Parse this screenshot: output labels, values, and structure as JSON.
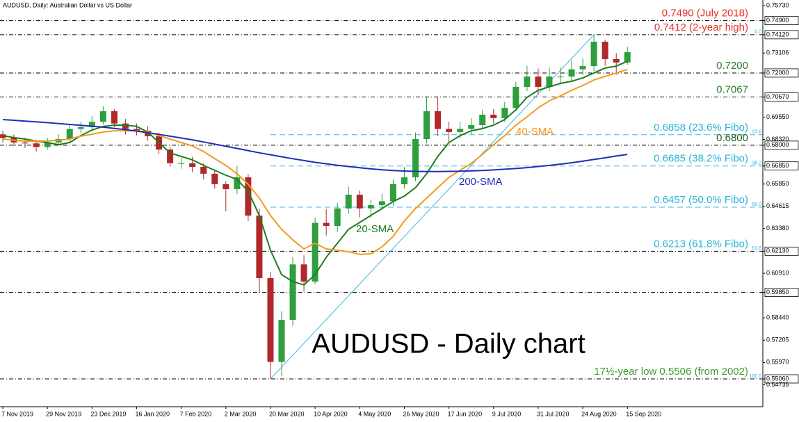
{
  "chart_data": {
    "type": "candlestick",
    "header": "AUDUSD, Daily:  Australian Dollar vs US Dollar",
    "title": "AUDUSD - Daily chart",
    "categories": [
      "7 Nov 2019",
      null,
      null,
      null,
      "29 Nov 2019",
      null,
      null,
      null,
      "23 Dec 2019",
      null,
      null,
      null,
      "16 Jan 2020",
      null,
      null,
      null,
      "7 Feb 2020",
      null,
      null,
      null,
      "2 Mar 2020",
      null,
      null,
      null,
      "20 Mar 2020",
      null,
      null,
      null,
      "10 Apr 2020",
      null,
      null,
      null,
      "4 May 2020",
      null,
      null,
      null,
      "26 May 2020",
      null,
      null,
      null,
      "17 Jun 2020",
      null,
      null,
      null,
      "9 Jul 2020",
      null,
      null,
      null,
      "31 Jul 2020",
      null,
      null,
      null,
      "24 Aug 2020",
      null,
      null,
      null,
      "15 Sep 2020"
    ],
    "open": [
      0.686,
      0.684,
      0.6815,
      0.681,
      0.679,
      0.6815,
      0.6834,
      0.689,
      0.69,
      0.693,
      0.6988,
      0.692,
      0.689,
      0.688,
      0.685,
      0.6776,
      0.67,
      0.67,
      0.668,
      0.6642,
      0.6584,
      0.6557,
      0.6622,
      0.641,
      0.6064,
      0.56,
      0.5833,
      0.614,
      0.6045,
      0.637,
      0.6353,
      0.645,
      0.6526,
      0.645,
      0.6468,
      0.649,
      0.6584,
      0.6622,
      0.6834,
      0.6988,
      0.689,
      0.6873,
      0.689,
      0.6911,
      0.6969,
      0.695,
      0.7007,
      0.7123,
      0.718,
      0.7123,
      0.718,
      0.718,
      0.722,
      0.7238,
      0.7373,
      0.7277,
      0.7258
    ],
    "high": [
      0.688,
      0.686,
      0.684,
      0.683,
      0.684,
      0.686,
      0.6915,
      0.693,
      0.696,
      0.7016,
      0.7,
      0.6945,
      0.692,
      0.6905,
      0.687,
      0.679,
      0.673,
      0.6735,
      0.67,
      0.6665,
      0.66,
      0.6685,
      0.664,
      0.645,
      0.61,
      0.588,
      0.618,
      0.619,
      0.64,
      0.6445,
      0.648,
      0.657,
      0.655,
      0.65,
      0.653,
      0.661,
      0.668,
      0.687,
      0.7065,
      0.7067,
      0.693,
      0.693,
      0.695,
      0.6995,
      0.7,
      0.704,
      0.715,
      0.724,
      0.7225,
      0.723,
      0.723,
      0.727,
      0.728,
      0.7412,
      0.7385,
      0.731,
      0.7345
    ],
    "low": [
      0.6815,
      0.6795,
      0.6785,
      0.6765,
      0.6775,
      0.68,
      0.682,
      0.6865,
      0.688,
      0.6915,
      0.69,
      0.686,
      0.6855,
      0.6825,
      0.675,
      0.668,
      0.667,
      0.665,
      0.661,
      0.656,
      0.6435,
      0.653,
      0.638,
      0.598,
      0.5506,
      0.552,
      0.58,
      0.599,
      0.603,
      0.63,
      0.632,
      0.642,
      0.64,
      0.64,
      0.645,
      0.6465,
      0.656,
      0.66,
      0.681,
      0.685,
      0.682,
      0.6835,
      0.686,
      0.689,
      0.692,
      0.693,
      0.699,
      0.71,
      0.708,
      0.71,
      0.714,
      0.715,
      0.719,
      0.721,
      0.724,
      0.719,
      0.7245
    ],
    "close": [
      0.684,
      0.6815,
      0.681,
      0.679,
      0.6815,
      0.6834,
      0.689,
      0.69,
      0.693,
      0.6988,
      0.692,
      0.689,
      0.688,
      0.685,
      0.6776,
      0.67,
      0.67,
      0.668,
      0.6642,
      0.6584,
      0.6557,
      0.6622,
      0.641,
      0.6064,
      0.56,
      0.5833,
      0.614,
      0.6045,
      0.637,
      0.6353,
      0.645,
      0.6526,
      0.645,
      0.6468,
      0.649,
      0.6584,
      0.6622,
      0.6834,
      0.6988,
      0.689,
      0.6873,
      0.689,
      0.6911,
      0.6969,
      0.695,
      0.7007,
      0.7123,
      0.718,
      0.7123,
      0.718,
      0.718,
      0.722,
      0.7238,
      0.7373,
      0.7277,
      0.7258,
      0.7315
    ],
    "up_color": "#2e9e3e",
    "down_color": "#b0282a",
    "series": [
      {
        "name": "20-SMA",
        "color": "#1e7d1e",
        "values": [
          0.6853,
          0.6842,
          0.6834,
          0.6823,
          0.6815,
          0.6803,
          0.6815,
          0.6853,
          0.6884,
          0.6904,
          0.6911,
          0.6911,
          0.6904,
          0.6873,
          0.6815,
          0.6757,
          0.6738,
          0.6719,
          0.6688,
          0.6661,
          0.6634,
          0.6611,
          0.6545,
          0.6411,
          0.6218,
          0.6083,
          0.6045,
          0.6026,
          0.6083,
          0.618,
          0.6257,
          0.6334,
          0.6372,
          0.6411,
          0.6449,
          0.6488,
          0.6518,
          0.6565,
          0.6642,
          0.6738,
          0.6815,
          0.6853,
          0.688,
          0.6892,
          0.6911,
          0.6942,
          0.6996,
          0.7065,
          0.7104,
          0.7123,
          0.7142,
          0.7154,
          0.7173,
          0.72,
          0.7227,
          0.7238,
          0.7265
        ]
      },
      {
        "name": "40-SMA",
        "color": "#f39a1e",
        "values": [
          0.6834,
          0.6827,
          0.6823,
          0.6823,
          0.6823,
          0.6827,
          0.6834,
          0.685,
          0.6861,
          0.6873,
          0.688,
          0.688,
          0.688,
          0.6873,
          0.6853,
          0.6834,
          0.6815,
          0.6796,
          0.6765,
          0.6726,
          0.6688,
          0.6642,
          0.6584,
          0.6507,
          0.6411,
          0.6334,
          0.6276,
          0.6226,
          0.6257,
          0.6226,
          0.6218,
          0.621,
          0.6195,
          0.6199,
          0.6237,
          0.6295,
          0.638,
          0.6449,
          0.6507,
          0.6565,
          0.6622,
          0.6661,
          0.6699,
          0.6749,
          0.6803,
          0.6853,
          0.6911,
          0.6957,
          0.7007,
          0.7046,
          0.7073,
          0.7104,
          0.7131,
          0.7161,
          0.7181,
          0.72,
          0.7219
        ]
      },
      {
        "name": "200-SMA",
        "color": "#1f2db5",
        "values": [
          0.6942,
          0.6938,
          0.6933,
          0.6929,
          0.6925,
          0.692,
          0.6915,
          0.691,
          0.6905,
          0.69,
          0.6893,
          0.6886,
          0.6878,
          0.687,
          0.686,
          0.685,
          0.684,
          0.683,
          0.6818,
          0.6806,
          0.6794,
          0.6782,
          0.677,
          0.6758,
          0.6747,
          0.6736,
          0.6725,
          0.6715,
          0.6705,
          0.6697,
          0.6689,
          0.6682,
          0.6675,
          0.6669,
          0.6664,
          0.666,
          0.6657,
          0.6655,
          0.6654,
          0.6654,
          0.6655,
          0.6656,
          0.6658,
          0.666,
          0.6663,
          0.6667,
          0.6671,
          0.6676,
          0.6682,
          0.6688,
          0.6695,
          0.6703,
          0.6712,
          0.6721,
          0.673,
          0.674,
          0.6749
        ]
      }
    ],
    "trendline_color": "#3fb7e6",
    "levels": [
      {
        "value": 0.749,
        "label": "0.7490 (July 2018)",
        "color": "#e8302a",
        "line_color": "#000000"
      },
      {
        "value": 0.7412,
        "label": "0.7412 (2-year high)",
        "color": "#e8302a",
        "line_color": "#000000",
        "fibo": "0.0"
      },
      {
        "value": 0.72,
        "label": "0.7200",
        "color": "#2a7d2a",
        "line_color": "#000000"
      },
      {
        "value": 0.7067,
        "label": "0.7067",
        "color": "#2a7d2a",
        "line_color": "#000000"
      },
      {
        "value": 0.6858,
        "label": "0.6858 (23.6% Fibo)",
        "color": "#2ab3d8",
        "line_color": "#3fb7e6",
        "fibo": "23.6"
      },
      {
        "value": 0.68,
        "label": "0.6800",
        "color": "#1f5e1f",
        "line_color": "#000000"
      },
      {
        "value": 0.6685,
        "label": "0.6685 (38.2% Fibo)",
        "color": "#2ab3d8",
        "line_color": "#3fb7e6",
        "fibo": "38.2"
      },
      {
        "value": 0.6457,
        "label": "0.6457 (50.0% Fibo)",
        "color": "#2ab3d8",
        "line_color": "#3fb7e6",
        "fibo": "50.0"
      },
      {
        "value": 0.6213,
        "label": "0.6213 (61.8% Fibo)",
        "color": "#2ab3d8",
        "line_color": "#000000",
        "fibo": "61.8"
      },
      {
        "value": 0.5985,
        "line_color": "#000000"
      },
      {
        "value": 0.5506,
        "label": "17½-year low 0.5506 (from 2002)",
        "color": "#3a9a2a",
        "line_color": "#000000",
        "fibo": "100.0"
      }
    ],
    "ylim": [
      0.5352,
      0.7604
    ],
    "yticks": [
      {
        "value": 0.7573,
        "label": "0.75730"
      },
      {
        "value": 0.749,
        "label": "0.74900"
      },
      {
        "value": 0.7412,
        "label": "0.74120"
      },
      0.73106,
      {
        "value": 0.72,
        "label": "0.72000"
      },
      {
        "value": 0.7067,
        "label": "0.70670"
      },
      {
        "value": 0.6955,
        "label": "0.69550"
      },
      {
        "value": 0.6832,
        "label": "0.68320"
      },
      {
        "value": 0.68,
        "label": "0.68000"
      },
      {
        "value": 0.6685,
        "label": "0.66850"
      },
      {
        "value": 0.6585,
        "label": "0.65850"
      },
      0.64615,
      {
        "value": 0.6338,
        "label": "0.63380"
      },
      {
        "value": 0.6213,
        "label": "0.62130"
      },
      {
        "value": 0.6091,
        "label": "0.60910"
      },
      {
        "value": 0.5985,
        "label": "0.59850"
      },
      {
        "value": 0.5844,
        "label": "0.58440"
      },
      0.57205,
      {
        "value": 0.5597,
        "label": "0.55970"
      },
      {
        "value": 0.5506,
        "label": "0.55060"
      },
      0.54735
    ]
  }
}
